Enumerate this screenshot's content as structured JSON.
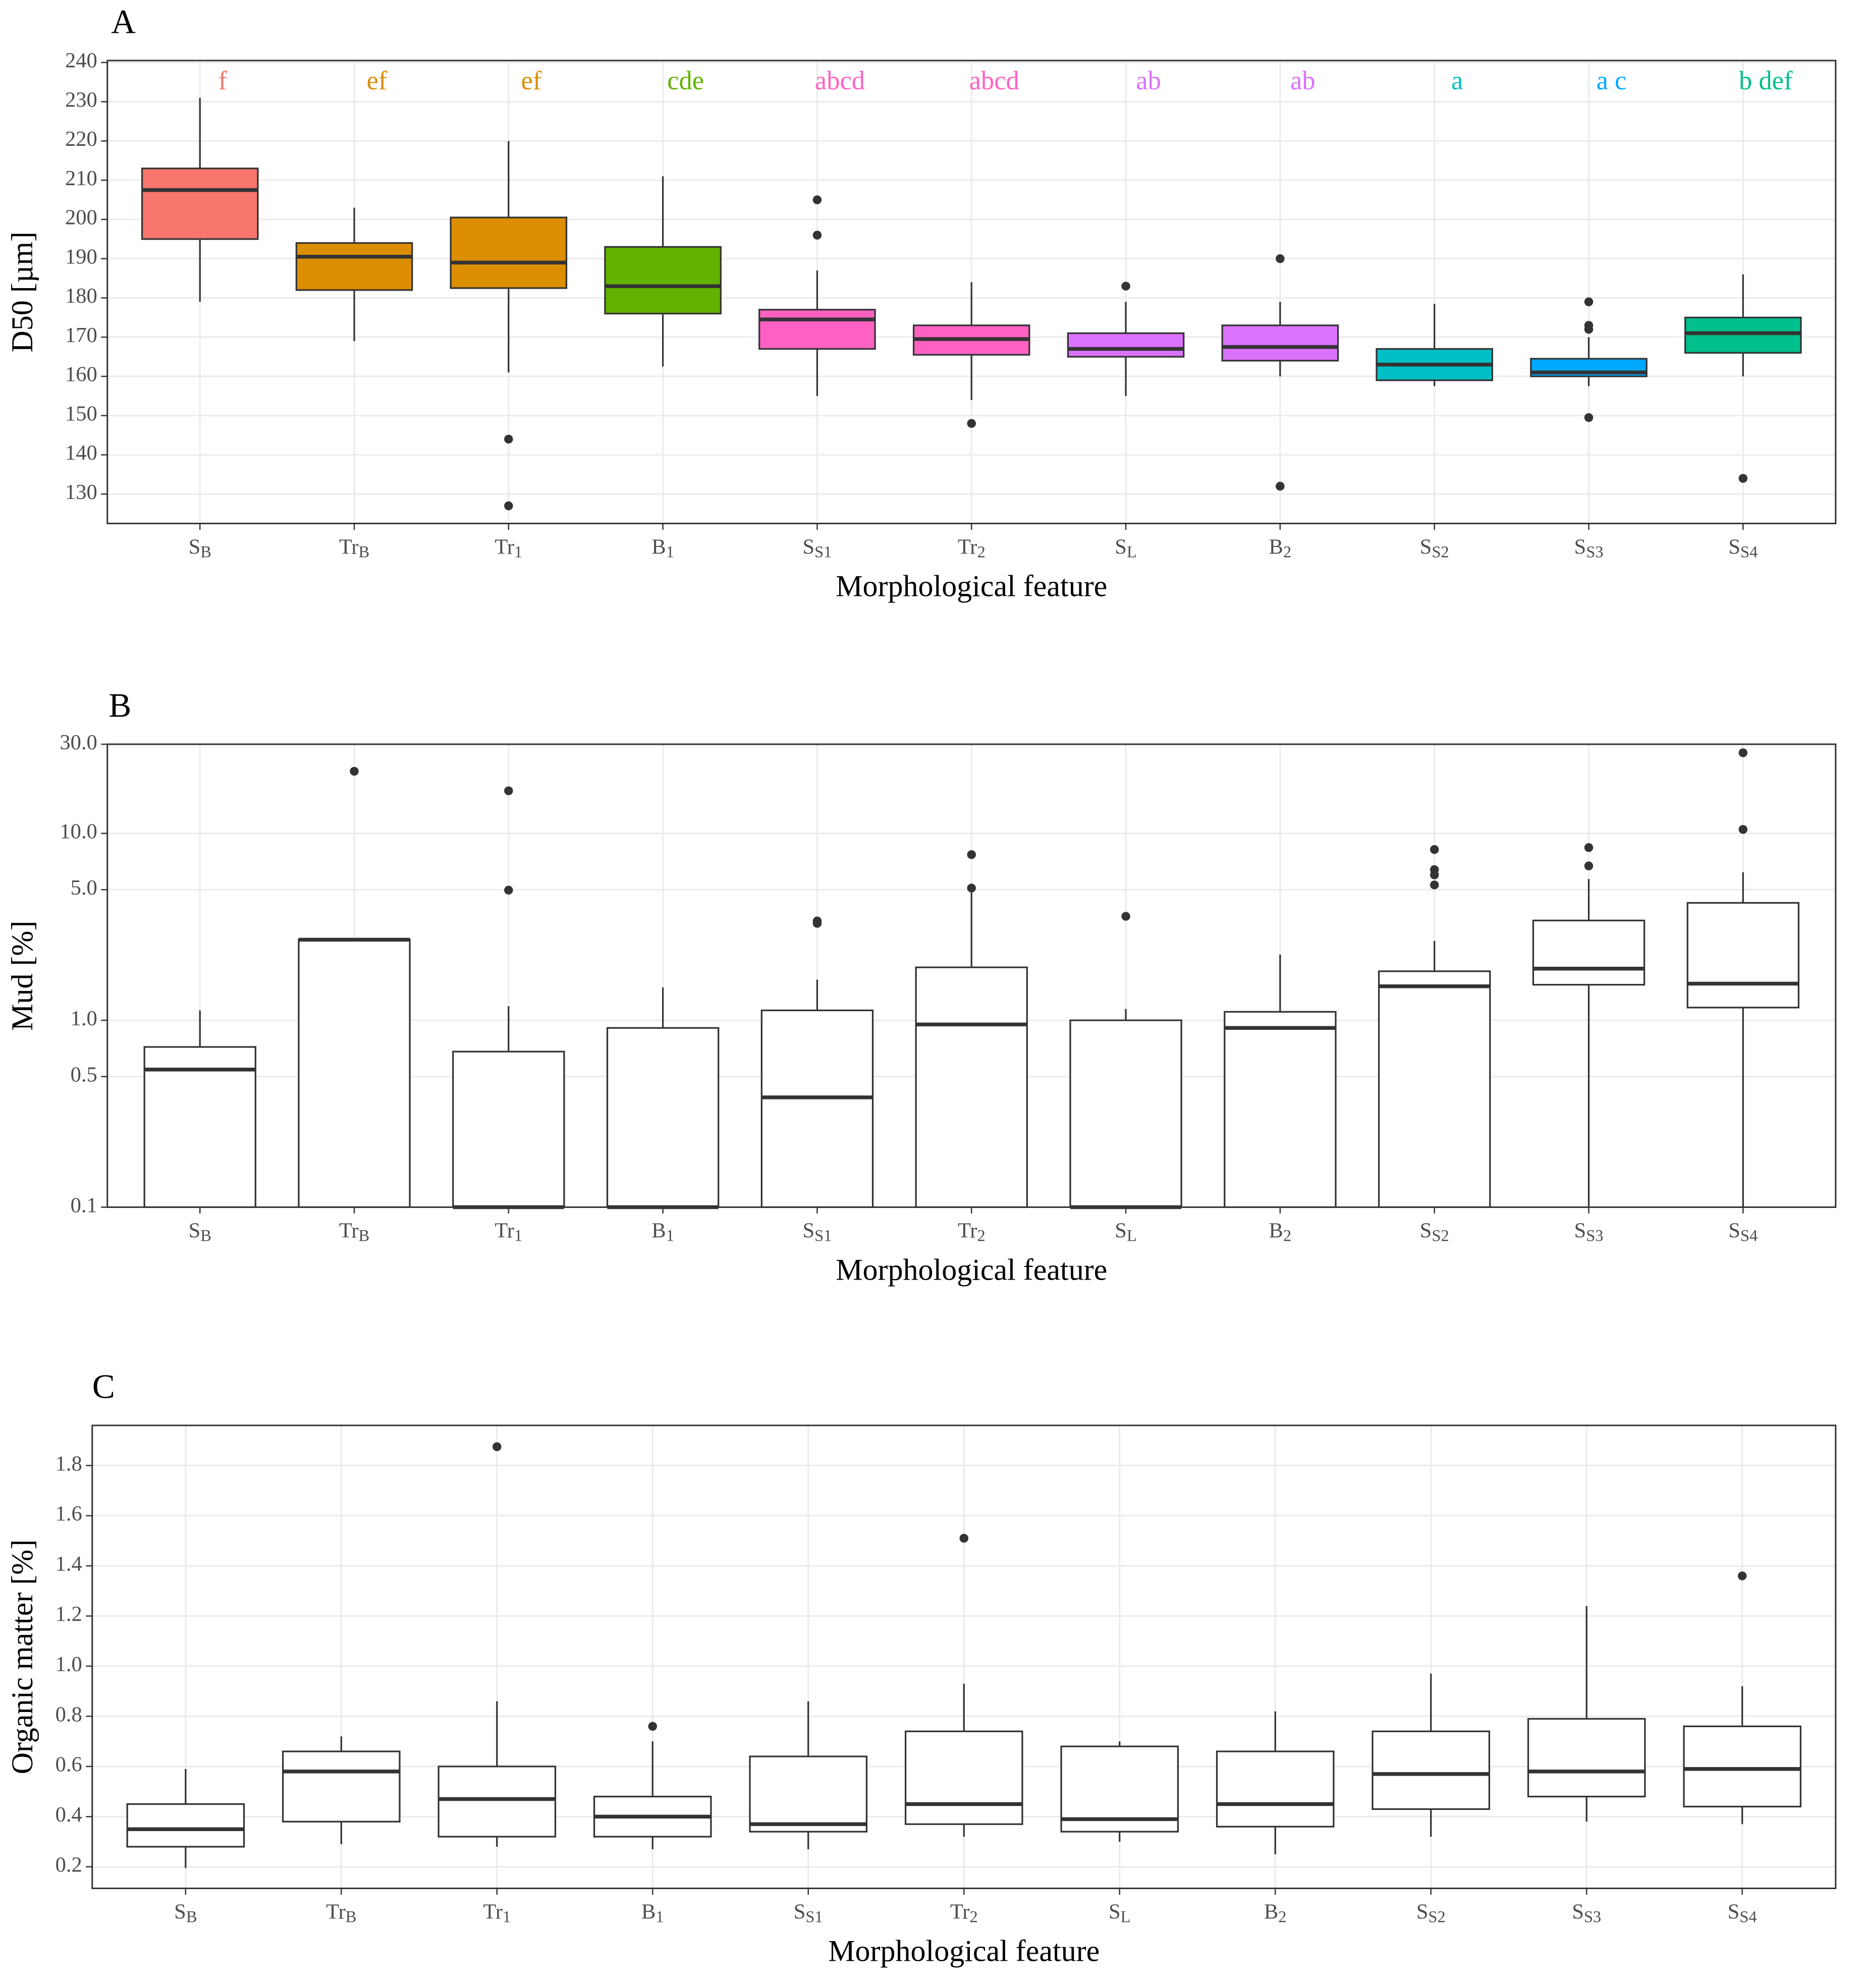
{
  "chart_data": [
    {
      "type": "box",
      "panel": "A",
      "ylabel": "D50 [µm]",
      "xlabel": "Morphological feature",
      "categories": [
        {
          "text": "S",
          "sub": "B"
        },
        {
          "text": "Tr",
          "sub": "B"
        },
        {
          "text": "Tr",
          "sub": "1"
        },
        {
          "text": "B",
          "sub": "1"
        },
        {
          "text": "S",
          "sub": "S1"
        },
        {
          "text": "Tr",
          "sub": "2"
        },
        {
          "text": "S",
          "sub": "L"
        },
        {
          "text": "B",
          "sub": "2"
        },
        {
          "text": "S",
          "sub": "S2"
        },
        {
          "text": "S",
          "sub": "S3"
        },
        {
          "text": "S",
          "sub": "S4"
        }
      ],
      "boxes": [
        {
          "whisker_low": 179,
          "q1": 195,
          "median": 207.5,
          "q3": 213,
          "whisker_high": 231,
          "outliers": []
        },
        {
          "whisker_low": 169,
          "q1": 182,
          "median": 190.5,
          "q3": 194,
          "whisker_high": 203,
          "outliers": []
        },
        {
          "whisker_low": 161,
          "q1": 182.5,
          "median": 189,
          "q3": 200.5,
          "whisker_high": 220,
          "outliers": [
            144,
            127
          ]
        },
        {
          "whisker_low": 162.5,
          "q1": 176,
          "median": 183,
          "q3": 193,
          "whisker_high": 211,
          "outliers": []
        },
        {
          "whisker_low": 155,
          "q1": 167,
          "median": 174.5,
          "q3": 177,
          "whisker_high": 187,
          "outliers": [
            196,
            205
          ]
        },
        {
          "whisker_low": 154,
          "q1": 165.5,
          "median": 169.5,
          "q3": 173,
          "whisker_high": 184,
          "outliers": [
            148
          ]
        },
        {
          "whisker_low": 155,
          "q1": 165,
          "median": 167,
          "q3": 171,
          "whisker_high": 179,
          "outliers": [
            183
          ]
        },
        {
          "whisker_low": 160,
          "q1": 164,
          "median": 167.5,
          "q3": 173,
          "whisker_high": 179,
          "outliers": [
            190,
            132
          ]
        },
        {
          "whisker_low": 157.5,
          "q1": 159,
          "median": 163,
          "q3": 167,
          "whisker_high": 178.5,
          "outliers": []
        },
        {
          "whisker_low": 157.5,
          "q1": 160,
          "median": 161,
          "q3": 164.5,
          "whisker_high": 170,
          "outliers": [
            173,
            172,
            179,
            149.5
          ]
        },
        {
          "whisker_low": 160,
          "q1": 166,
          "median": 171,
          "q3": 175,
          "whisker_high": 186,
          "outliers": [
            134
          ]
        }
      ],
      "box_colors": [
        "#f8766d",
        "#db8e00",
        "#db8e00",
        "#64b200",
        "#ff61c3",
        "#ff61c3",
        "#db72fb",
        "#db72fb",
        "#00bfc4",
        "#00a9ff",
        "#00c08b"
      ],
      "letters": [
        "f",
        "ef",
        "ef",
        "cde",
        "abcd",
        "abcd",
        "ab",
        "ab",
        "a",
        "a c",
        "b def"
      ],
      "letter_colors": [
        "#f8766d",
        "#db8e00",
        "#db8e00",
        "#64b200",
        "#ff61c3",
        "#ff61c3",
        "#db72fb",
        "#db72fb",
        "#00bfc4",
        "#00a9ff",
        "#00c08b"
      ],
      "ylim": [
        122.5,
        240.5
      ],
      "yticks": [
        130,
        140,
        150,
        160,
        170,
        180,
        190,
        200,
        210,
        220,
        230,
        240
      ],
      "grid": true,
      "log_scale": false
    },
    {
      "type": "box",
      "panel": "B",
      "ylabel": "Mud [%]",
      "xlabel": "Morphological feature",
      "categories": [
        {
          "text": "S",
          "sub": "B"
        },
        {
          "text": "Tr",
          "sub": "B"
        },
        {
          "text": "Tr",
          "sub": "1"
        },
        {
          "text": "B",
          "sub": "1"
        },
        {
          "text": "S",
          "sub": "S1"
        },
        {
          "text": "Tr",
          "sub": "2"
        },
        {
          "text": "S",
          "sub": "L"
        },
        {
          "text": "B",
          "sub": "2"
        },
        {
          "text": "S",
          "sub": "S2"
        },
        {
          "text": "S",
          "sub": "S3"
        },
        {
          "text": "S",
          "sub": "S4"
        }
      ],
      "boxes": [
        {
          "whisker_low": 0.1,
          "q1": 0.1,
          "median": 0.545,
          "q3": 0.72,
          "whisker_high": 1.13,
          "outliers": []
        },
        {
          "whisker_low": 0.1,
          "q1": 0.1,
          "median": 2.7,
          "q3": 2.71,
          "whisker_high": 2.71,
          "outliers": [
            21.5
          ]
        },
        {
          "whisker_low": 0.1,
          "q1": 0.1,
          "median": 0.1,
          "q3": 0.68,
          "whisker_high": 1.19,
          "outliers": [
            4.97,
            16.9
          ]
        },
        {
          "whisker_low": 0.1,
          "q1": 0.1,
          "median": 0.1,
          "q3": 0.91,
          "whisker_high": 1.5,
          "outliers": []
        },
        {
          "whisker_low": 0.1,
          "q1": 0.1,
          "median": 0.387,
          "q3": 1.13,
          "whisker_high": 1.65,
          "outliers": [
            3.3,
            3.4
          ]
        },
        {
          "whisker_low": 0.1,
          "q1": 0.1,
          "median": 0.95,
          "q3": 1.92,
          "whisker_high": 4.9,
          "outliers": [
            7.7,
            5.1
          ]
        },
        {
          "whisker_low": 0.1,
          "q1": 0.1,
          "median": 0.1,
          "q3": 1.0,
          "whisker_high": 1.15,
          "outliers": [
            3.6
          ]
        },
        {
          "whisker_low": 0.1,
          "q1": 0.1,
          "median": 0.91,
          "q3": 1.11,
          "whisker_high": 2.25,
          "outliers": []
        },
        {
          "whisker_low": 0.1,
          "q1": 0.1,
          "median": 1.52,
          "q3": 1.83,
          "whisker_high": 2.66,
          "outliers": [
            8.2,
            6.4,
            6.0,
            5.3
          ]
        },
        {
          "whisker_low": 0.1,
          "q1": 1.55,
          "median": 1.89,
          "q3": 3.42,
          "whisker_high": 5.7,
          "outliers": [
            8.4,
            6.7
          ]
        },
        {
          "whisker_low": 0.1,
          "q1": 1.17,
          "median": 1.57,
          "q3": 4.25,
          "whisker_high": 6.2,
          "outliers": [
            27.0,
            10.5
          ]
        }
      ],
      "color": "#ffffff",
      "ylim": [
        0.1,
        30
      ],
      "yticks": [
        0.1,
        0.5,
        {
          "value": 1,
          "label": "1.0"
        },
        {
          "value": 5,
          "label": "5.0"
        },
        {
          "value": 10,
          "label": "10.0"
        },
        {
          "value": 30,
          "label": "30.0"
        }
      ],
      "grid": true,
      "log_scale": true
    },
    {
      "type": "box",
      "panel": "C",
      "ylabel": "Organic matter [%]",
      "xlabel": "Morphological feature",
      "categories": [
        {
          "text": "S",
          "sub": "B"
        },
        {
          "text": "Tr",
          "sub": "B"
        },
        {
          "text": "Tr",
          "sub": "1"
        },
        {
          "text": "B",
          "sub": "1"
        },
        {
          "text": "S",
          "sub": "S1"
        },
        {
          "text": "Tr",
          "sub": "2"
        },
        {
          "text": "S",
          "sub": "L"
        },
        {
          "text": "B",
          "sub": "2"
        },
        {
          "text": "S",
          "sub": "S2"
        },
        {
          "text": "S",
          "sub": "S3"
        },
        {
          "text": "S",
          "sub": "S4"
        }
      ],
      "boxes": [
        {
          "whisker_low": 0.195,
          "q1": 0.28,
          "median": 0.35,
          "q3": 0.45,
          "whisker_high": 0.59,
          "outliers": []
        },
        {
          "whisker_low": 0.29,
          "q1": 0.38,
          "median": 0.58,
          "q3": 0.66,
          "whisker_high": 0.72,
          "outliers": []
        },
        {
          "whisker_low": 0.28,
          "q1": 0.32,
          "median": 0.47,
          "q3": 0.6,
          "whisker_high": 0.86,
          "outliers": [
            1.875
          ]
        },
        {
          "whisker_low": 0.27,
          "q1": 0.32,
          "median": 0.4,
          "q3": 0.48,
          "whisker_high": 0.7,
          "outliers": [
            0.76
          ]
        },
        {
          "whisker_low": 0.27,
          "q1": 0.34,
          "median": 0.37,
          "q3": 0.64,
          "whisker_high": 0.86,
          "outliers": []
        },
        {
          "whisker_low": 0.32,
          "q1": 0.37,
          "median": 0.45,
          "q3": 0.74,
          "whisker_high": 0.93,
          "outliers": [
            1.51
          ]
        },
        {
          "whisker_low": 0.3,
          "q1": 0.34,
          "median": 0.39,
          "q3": 0.68,
          "whisker_high": 0.7,
          "outliers": []
        },
        {
          "whisker_low": 0.25,
          "q1": 0.36,
          "median": 0.45,
          "q3": 0.66,
          "whisker_high": 0.82,
          "outliers": []
        },
        {
          "whisker_low": 0.32,
          "q1": 0.43,
          "median": 0.57,
          "q3": 0.74,
          "whisker_high": 0.97,
          "outliers": []
        },
        {
          "whisker_low": 0.38,
          "q1": 0.48,
          "median": 0.58,
          "q3": 0.79,
          "whisker_high": 1.24,
          "outliers": []
        },
        {
          "whisker_low": 0.37,
          "q1": 0.44,
          "median": 0.59,
          "q3": 0.76,
          "whisker_high": 0.92,
          "outliers": [
            1.36
          ]
        }
      ],
      "color": "#ffffff",
      "ylim": [
        0.114,
        1.96
      ],
      "yticks": [
        0.2,
        0.4,
        0.6,
        0.8,
        {
          "value": 1,
          "label": "1.0"
        },
        1.2,
        1.4,
        1.6,
        1.8
      ],
      "grid": true,
      "log_scale": false
    }
  ]
}
